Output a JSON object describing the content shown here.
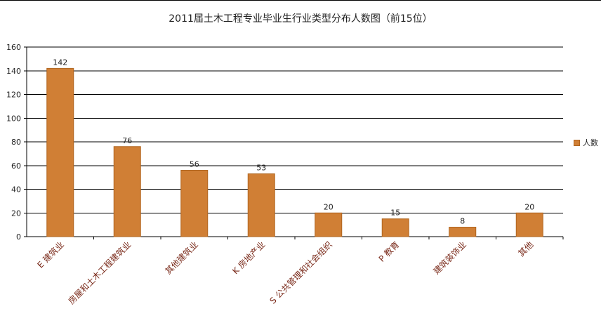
{
  "chart_data": {
    "type": "bar",
    "title": "2011届土木工程专业毕业生行业类型分布人数图（前15位）",
    "categories": [
      "E 建筑业",
      "房屋和土木工程建筑业",
      "其他建筑业",
      "K 房地产业",
      "S 公共管理和社会组织",
      "P 教育",
      "建筑装饰业",
      "其他"
    ],
    "series": [
      {
        "name": "人数",
        "values": [
          142,
          76,
          56,
          53,
          20,
          15,
          8,
          20
        ]
      }
    ],
    "ylim": [
      0,
      160
    ],
    "yticks": [
      "0",
      "20",
      "40",
      "60",
      "80",
      "100",
      "120",
      "140",
      "160"
    ],
    "grid": true,
    "legend": "right",
    "bar_color": "#d07f35",
    "bar_edge_color": "#b0651f",
    "category_label_color": "#7a2a1a"
  }
}
